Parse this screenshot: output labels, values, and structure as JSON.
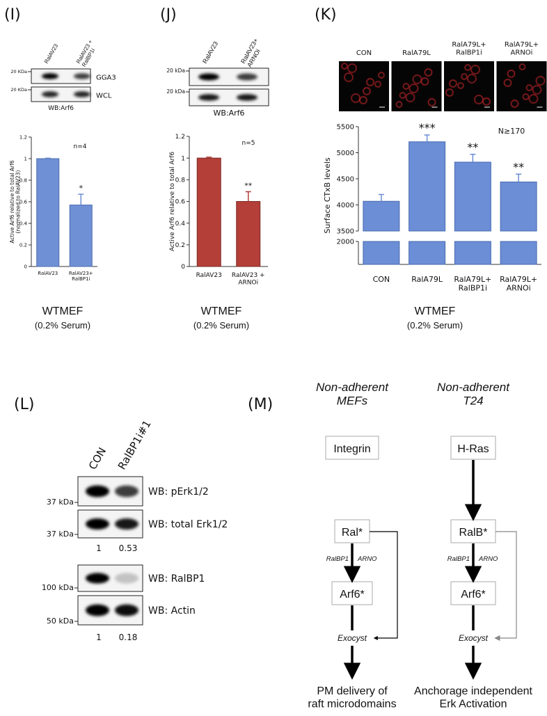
{
  "panels": [
    "(I)",
    "(J)",
    "(K)",
    "(L)",
    "(M)"
  ],
  "blots": [
    {
      "lanes": [
        "RalAV23",
        "RalAV23 +\nRalBP1i"
      ],
      "rows": [
        "GGA3",
        "WCL"
      ],
      "markers": [
        "20 KDa",
        "20 KDa"
      ],
      "caption": "WB:Arf6"
    },
    {
      "lanes": [
        "RalAV23",
        "RalAV23+\nARNOi"
      ],
      "rows": [
        null,
        null
      ],
      "markers": [
        "20 kDa",
        "20 kDa"
      ],
      "caption": "WB:Arf6"
    },
    {
      "lanes": [
        "CON",
        "RalBP1i#1"
      ],
      "rows": [
        "WB: pErk1/2",
        "WB: total Erk1/2",
        "WB: RalBP1",
        "WB: Actin"
      ],
      "markers": [
        "37 kDa",
        "37 kDa",
        "100 kDa",
        "50 kDa"
      ],
      "quantification": [
        [
          1,
          0.53
        ],
        [
          1,
          0.18
        ]
      ]
    }
  ],
  "chart_data": [
    {
      "type": "bar",
      "ylabel": "Active Arf6 relative to total Arf6\n(normalized to RalAV23)",
      "categories": [
        "RalAV23",
        "RalAV23+\nRalBP1i"
      ],
      "values": [
        1,
        0.57
      ],
      "errors": [
        0.005,
        0.1
      ],
      "significance": [
        null,
        "*"
      ],
      "color": "#6f90d4",
      "ylim": [
        0,
        1.2
      ],
      "yticks": [
        0,
        0.2,
        0.4,
        0.6,
        0.8,
        1,
        1.2
      ],
      "annotation": "n=4",
      "footer": [
        "WTMEF",
        "(0.2% Serum)"
      ]
    },
    {
      "type": "bar",
      "ylabel": "Active Arf6 relative to total Arf6",
      "categories": [
        "RalAV23",
        "RalAV23 +\nARNOi"
      ],
      "values": [
        1,
        0.6
      ],
      "errors": [
        0.008,
        0.09
      ],
      "significance": [
        null,
        "**"
      ],
      "color": "#b33f38",
      "ylim": [
        0,
        1.2
      ],
      "yticks": [
        0,
        0.2,
        0.4,
        0.6,
        0.8,
        1,
        1.2
      ],
      "annotation": "n=5",
      "footer": [
        "WTMEF",
        "(0.2% Serum)"
      ]
    },
    {
      "type": "bar",
      "ylabel": "Surface CTxB levels",
      "image_labels": [
        "CON",
        "RalA79L",
        "RalA79L+\nRalBP1i",
        "RalA79L+\nARNOi"
      ],
      "categories": [
        "CON",
        "RalA79L",
        "RalA79L+\nRalBP1i",
        "RalA79L+\nARNOi"
      ],
      "values": [
        4070,
        5210,
        4820,
        4440
      ],
      "errors": [
        130,
        130,
        150,
        150
      ],
      "significance": [
        null,
        "***",
        "**",
        "**"
      ],
      "color": "#6b8ed6",
      "ylim": [
        0,
        5500
      ],
      "axis_break": [
        2000,
        3500
      ],
      "yticks": [
        2000,
        3500,
        4000,
        4500,
        5000,
        5500
      ],
      "annotation": "N≥170",
      "footer": [
        "WTMEF",
        "(0.2% Serum)"
      ]
    }
  ],
  "diagram": {
    "columns": [
      {
        "title": "Non-adherent\nMEFs",
        "nodes": [
          "Integrin",
          "Ral*",
          "Arf6*",
          "Exocyst",
          "PM delivery of\nraft microdomains"
        ],
        "edge_labels": [
          "RalBP1",
          "ARNO"
        ]
      },
      {
        "title": "Non-adherent\nT24",
        "nodes": [
          "H-Ras",
          "RalB*",
          "Arf6*",
          "Exocyst",
          "Anchorage independent\nErk Activation"
        ],
        "edge_labels": [
          "RalBP1",
          "ARNO"
        ]
      }
    ]
  }
}
